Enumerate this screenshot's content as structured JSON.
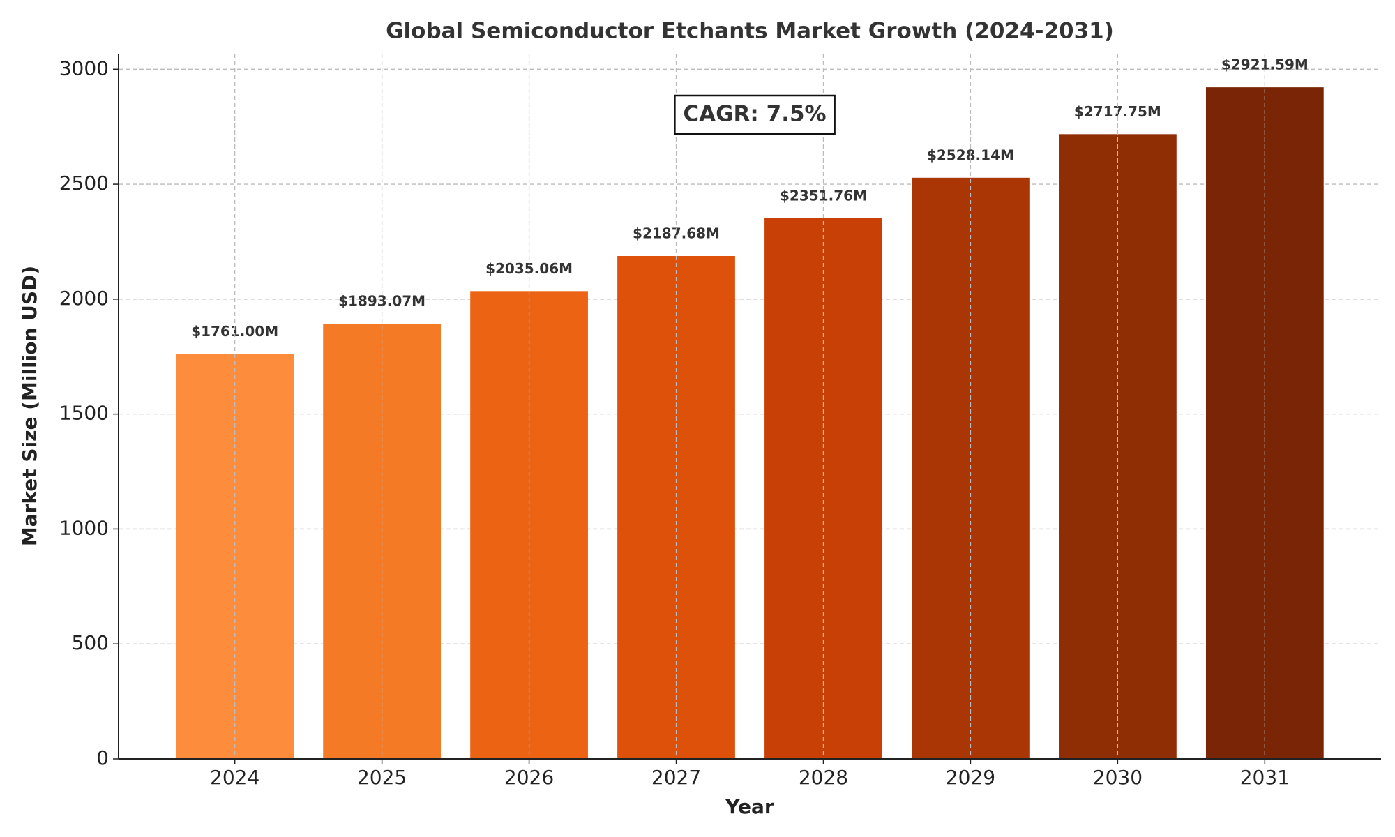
{
  "chart_data": {
    "type": "bar",
    "title": "Global Semiconductor Etchants Market Growth (2024-2031)",
    "x_label": "Year",
    "y_label": "Market Size (Million USD)",
    "annotation": "CAGR: 7.5%",
    "categories": [
      "2024",
      "2025",
      "2026",
      "2027",
      "2028",
      "2029",
      "2030",
      "2031"
    ],
    "values": [
      1761.0,
      1893.07,
      2035.06,
      2187.68,
      2351.76,
      2528.14,
      2717.75,
      2921.59
    ],
    "value_labels": [
      "$1761.00M",
      "$1893.07M",
      "$2035.06M",
      "$2187.68M",
      "$2351.76M",
      "$2528.14M",
      "$2717.75M",
      "$2921.59M"
    ],
    "colors": [
      "#fd8d3c",
      "#f57a25",
      "#ec6314",
      "#dd510a",
      "#c84005",
      "#aa3605",
      "#8f2d04",
      "#7a2606"
    ],
    "ylim": [
      0,
      3067.67
    ],
    "yticks": [
      0,
      500,
      1000,
      1500,
      2000,
      2500,
      3000
    ],
    "grid": true
  }
}
